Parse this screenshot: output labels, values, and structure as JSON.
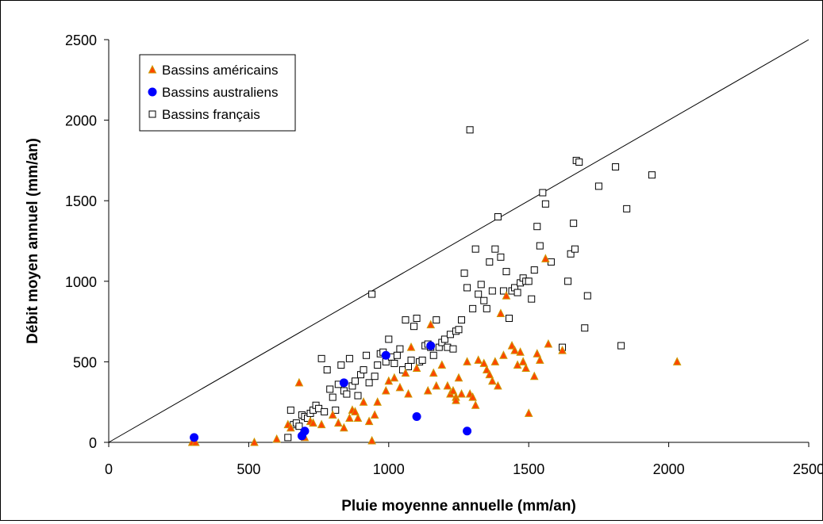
{
  "chart_data": {
    "type": "scatter",
    "xlabel": "Pluie moyenne annuelle (mm/an)",
    "ylabel": "Débit moyen annuel (mm/an)",
    "xlim": [
      0,
      2500
    ],
    "ylim": [
      0,
      2500
    ],
    "x_ticks": [
      "0",
      "500",
      "1000",
      "1500",
      "2000",
      "2500"
    ],
    "y_ticks": [
      "0",
      "500",
      "1000",
      "1500",
      "2000",
      "2500"
    ],
    "grid": false,
    "legend_position": "top-left",
    "reference_line": {
      "from": [
        0,
        0
      ],
      "to": [
        2500,
        2500
      ]
    },
    "series": [
      {
        "name": "Bassins américains",
        "marker": "triangle",
        "fill": "#ff4500",
        "stroke": "#cc9900",
        "points": [
          [
            298,
            0
          ],
          [
            310,
            0
          ],
          [
            520,
            0
          ],
          [
            600,
            20
          ],
          [
            640,
            110
          ],
          [
            650,
            90
          ],
          [
            680,
            370
          ],
          [
            690,
            60
          ],
          [
            700,
            30
          ],
          [
            720,
            130
          ],
          [
            730,
            120
          ],
          [
            760,
            110
          ],
          [
            800,
            170
          ],
          [
            820,
            120
          ],
          [
            840,
            90
          ],
          [
            860,
            150
          ],
          [
            870,
            200
          ],
          [
            880,
            190
          ],
          [
            890,
            150
          ],
          [
            910,
            250
          ],
          [
            930,
            130
          ],
          [
            940,
            10
          ],
          [
            950,
            170
          ],
          [
            960,
            250
          ],
          [
            990,
            320
          ],
          [
            1000,
            380
          ],
          [
            1020,
            400
          ],
          [
            1040,
            340
          ],
          [
            1060,
            430
          ],
          [
            1070,
            300
          ],
          [
            1080,
            590
          ],
          [
            1100,
            460
          ],
          [
            1140,
            320
          ],
          [
            1150,
            730
          ],
          [
            1160,
            430
          ],
          [
            1170,
            350
          ],
          [
            1190,
            480
          ],
          [
            1210,
            350
          ],
          [
            1220,
            300
          ],
          [
            1230,
            320
          ],
          [
            1240,
            280
          ],
          [
            1240,
            260
          ],
          [
            1250,
            400
          ],
          [
            1260,
            300
          ],
          [
            1280,
            500
          ],
          [
            1290,
            300
          ],
          [
            1300,
            280
          ],
          [
            1310,
            230
          ],
          [
            1320,
            510
          ],
          [
            1340,
            490
          ],
          [
            1350,
            450
          ],
          [
            1360,
            420
          ],
          [
            1370,
            380
          ],
          [
            1380,
            500
          ],
          [
            1390,
            350
          ],
          [
            1400,
            800
          ],
          [
            1410,
            540
          ],
          [
            1420,
            910
          ],
          [
            1440,
            600
          ],
          [
            1450,
            570
          ],
          [
            1460,
            480
          ],
          [
            1470,
            560
          ],
          [
            1480,
            500
          ],
          [
            1490,
            460
          ],
          [
            1500,
            180
          ],
          [
            1520,
            410
          ],
          [
            1530,
            550
          ],
          [
            1540,
            510
          ],
          [
            1560,
            1140
          ],
          [
            1570,
            610
          ],
          [
            1620,
            570
          ],
          [
            2030,
            500
          ]
        ]
      },
      {
        "name": "Bassins australiens",
        "marker": "circle",
        "fill": "#0000ff",
        "stroke": "#0000ff",
        "points": [
          [
            305,
            30
          ],
          [
            690,
            40
          ],
          [
            700,
            70
          ],
          [
            840,
            370
          ],
          [
            990,
            540
          ],
          [
            1100,
            160
          ],
          [
            1150,
            600
          ],
          [
            1280,
            70
          ]
        ]
      },
      {
        "name": "Bassins français",
        "marker": "square",
        "fill": "#ffffff",
        "stroke": "#000000",
        "points": [
          [
            640,
            30
          ],
          [
            650,
            200
          ],
          [
            660,
            110
          ],
          [
            670,
            120
          ],
          [
            680,
            100
          ],
          [
            690,
            170
          ],
          [
            700,
            160
          ],
          [
            710,
            150
          ],
          [
            720,
            180
          ],
          [
            730,
            200
          ],
          [
            740,
            230
          ],
          [
            750,
            210
          ],
          [
            760,
            520
          ],
          [
            770,
            190
          ],
          [
            780,
            450
          ],
          [
            790,
            330
          ],
          [
            800,
            280
          ],
          [
            810,
            200
          ],
          [
            820,
            360
          ],
          [
            830,
            480
          ],
          [
            840,
            320
          ],
          [
            850,
            300
          ],
          [
            860,
            520
          ],
          [
            870,
            350
          ],
          [
            880,
            380
          ],
          [
            890,
            290
          ],
          [
            900,
            420
          ],
          [
            910,
            450
          ],
          [
            920,
            540
          ],
          [
            930,
            370
          ],
          [
            940,
            920
          ],
          [
            950,
            410
          ],
          [
            960,
            480
          ],
          [
            970,
            550
          ],
          [
            980,
            560
          ],
          [
            990,
            500
          ],
          [
            1000,
            640
          ],
          [
            1010,
            530
          ],
          [
            1020,
            490
          ],
          [
            1030,
            540
          ],
          [
            1040,
            580
          ],
          [
            1050,
            450
          ],
          [
            1060,
            760
          ],
          [
            1070,
            470
          ],
          [
            1080,
            510
          ],
          [
            1090,
            720
          ],
          [
            1100,
            770
          ],
          [
            1110,
            500
          ],
          [
            1120,
            510
          ],
          [
            1130,
            600
          ],
          [
            1140,
            610
          ],
          [
            1150,
            590
          ],
          [
            1160,
            540
          ],
          [
            1170,
            760
          ],
          [
            1180,
            590
          ],
          [
            1190,
            620
          ],
          [
            1200,
            640
          ],
          [
            1210,
            590
          ],
          [
            1220,
            670
          ],
          [
            1230,
            580
          ],
          [
            1240,
            690
          ],
          [
            1250,
            700
          ],
          [
            1260,
            760
          ],
          [
            1270,
            1050
          ],
          [
            1280,
            960
          ],
          [
            1290,
            1940
          ],
          [
            1300,
            830
          ],
          [
            1310,
            1200
          ],
          [
            1320,
            920
          ],
          [
            1330,
            980
          ],
          [
            1340,
            880
          ],
          [
            1350,
            830
          ],
          [
            1360,
            1120
          ],
          [
            1370,
            940
          ],
          [
            1380,
            1200
          ],
          [
            1390,
            1400
          ],
          [
            1400,
            1150
          ],
          [
            1410,
            940
          ],
          [
            1420,
            1060
          ],
          [
            1430,
            770
          ],
          [
            1440,
            940
          ],
          [
            1450,
            960
          ],
          [
            1460,
            930
          ],
          [
            1470,
            990
          ],
          [
            1480,
            1020
          ],
          [
            1490,
            1000
          ],
          [
            1500,
            1000
          ],
          [
            1510,
            890
          ],
          [
            1520,
            1070
          ],
          [
            1530,
            1340
          ],
          [
            1540,
            1220
          ],
          [
            1550,
            1550
          ],
          [
            1560,
            1480
          ],
          [
            1580,
            1120
          ],
          [
            1620,
            590
          ],
          [
            1640,
            1000
          ],
          [
            1650,
            1170
          ],
          [
            1660,
            1360
          ],
          [
            1665,
            1200
          ],
          [
            1670,
            1750
          ],
          [
            1680,
            1740
          ],
          [
            1700,
            710
          ],
          [
            1710,
            910
          ],
          [
            1750,
            1590
          ],
          [
            1810,
            1710
          ],
          [
            1830,
            600
          ],
          [
            1850,
            1450
          ],
          [
            1940,
            1660
          ]
        ]
      }
    ]
  }
}
